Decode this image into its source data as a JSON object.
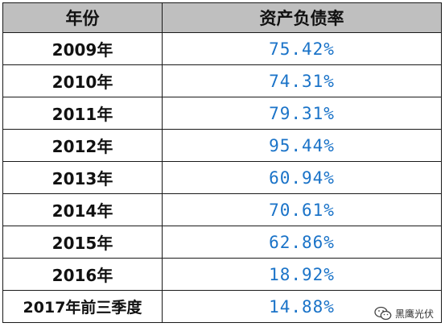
{
  "table": {
    "headers": {
      "year": "年份",
      "ratio": "资产负债率"
    },
    "rows": [
      {
        "year": "2009年",
        "ratio": "75.42%"
      },
      {
        "year": "2010年",
        "ratio": "74.31%"
      },
      {
        "year": "2011年",
        "ratio": "79.31%"
      },
      {
        "year": "2012年",
        "ratio": "95.44%"
      },
      {
        "year": "2013年",
        "ratio": "60.94%"
      },
      {
        "year": "2014年",
        "ratio": "70.61%"
      },
      {
        "year": "2015年",
        "ratio": "62.86%"
      },
      {
        "year": "2016年",
        "ratio": "18.92%"
      },
      {
        "year": "2017年前三季度",
        "ratio": "14.88%"
      }
    ]
  },
  "watermark": {
    "icon": "wechat-icon",
    "text": "黑鹰光伏"
  },
  "colors": {
    "header_bg": "#bfbfbf",
    "ratio_text": "#1a73c8",
    "border": "#1a1a1a"
  }
}
